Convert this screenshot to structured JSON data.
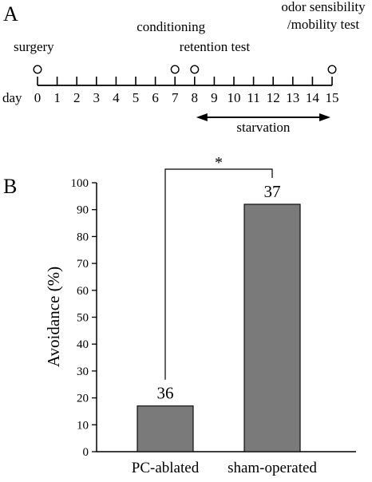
{
  "panel_a": {
    "label": "A",
    "day_label": "day",
    "days": [
      "0",
      "1",
      "2",
      "3",
      "4",
      "5",
      "6",
      "7",
      "8",
      "9",
      "10",
      "11",
      "12",
      "13",
      "14",
      "15"
    ],
    "events": [
      {
        "day": 0,
        "lines": [
          "surgery"
        ]
      },
      {
        "day": 7,
        "lines": [
          "conditioning"
        ]
      },
      {
        "day": 8,
        "lines": [
          "retention test"
        ]
      },
      {
        "day": 15,
        "lines": [
          "odor sensibility",
          "/mobility test"
        ]
      }
    ],
    "starvation": {
      "label": "starvation",
      "from_day": 8,
      "to_day": 15
    }
  },
  "panel_b": {
    "label": "B",
    "significance_label": "*"
  },
  "chart_data": {
    "type": "bar",
    "categories": [
      "PC-ablated",
      "sham-operated"
    ],
    "values": [
      17,
      92
    ],
    "n_labels": [
      "36",
      "37"
    ],
    "ylabel": "Avoidance (%)",
    "ylim": [
      0,
      100
    ],
    "yticks": [
      "0",
      "10",
      "20",
      "30",
      "40",
      "50",
      "60",
      "70",
      "80",
      "90",
      "100"
    ],
    "bar_color": "#7a7a7a",
    "grid": false
  }
}
